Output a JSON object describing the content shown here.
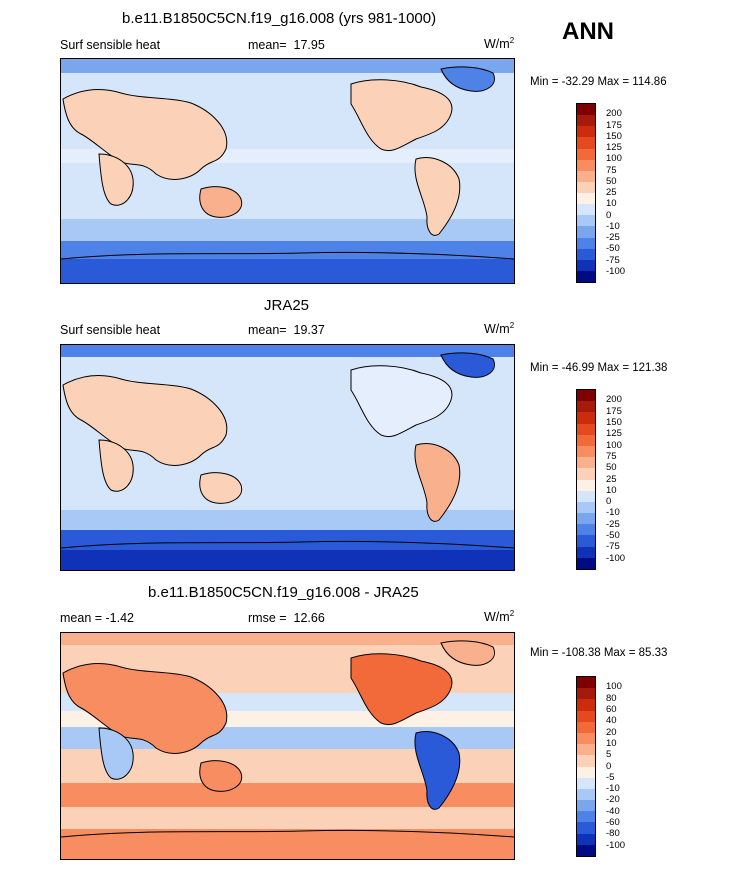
{
  "season": "ANN",
  "panels": [
    {
      "title": "b.e11.B1850C5CN.f19_g16.008 (yrs 981-1000)",
      "left_label": "Surf sensible heat",
      "stat_label": "mean=",
      "stat_value": "17.95",
      "units": "W/m",
      "units_sup": "2",
      "minmax": "Min = -32.29 Max = 114.86"
    },
    {
      "title": "JRA25",
      "left_label": "Surf sensible heat",
      "stat_label": "mean=",
      "stat_value": "19.37",
      "units": "W/m",
      "units_sup": "2",
      "minmax": "Min = -46.99 Max = 121.38"
    },
    {
      "title": "b.e11.B1850C5CN.f19_g16.008 - JRA25",
      "left_label": "mean =  -1.42",
      "stat_label": "rmse =",
      "stat_value": "12.66",
      "units": "W/m",
      "units_sup": "2",
      "minmax": "Min = -108.38 Max = 85.33"
    }
  ],
  "chart_data": [
    {
      "type": "heatmap",
      "title": "b.e11.B1850C5CN.f19_g16.008 (yrs 981-1000)",
      "variable": "Surf sensible heat",
      "mean": 17.95,
      "min": -32.29,
      "max": 114.86,
      "colorbar_levels": [
        "200",
        "175",
        "150",
        "125",
        "100",
        "75",
        "50",
        "25",
        "10",
        "0",
        "-10",
        "-25",
        "-50",
        "-75",
        "-100"
      ],
      "colorbar_colors": [
        "#7f0000",
        "#a51a0a",
        "#cd2a0e",
        "#e54a1e",
        "#f26a3a",
        "#f78d60",
        "#f9b08c",
        "#fbd2b8",
        "#fdf0e4",
        "#d6e6fa",
        "#a8c8f5",
        "#7aa6ee",
        "#4e82e6",
        "#2a5ad8",
        "#1032b8",
        "#000a82"
      ]
    },
    {
      "type": "heatmap",
      "title": "JRA25",
      "variable": "Surf sensible heat",
      "mean": 19.37,
      "min": -46.99,
      "max": 121.38,
      "colorbar_levels": [
        "200",
        "175",
        "150",
        "125",
        "100",
        "75",
        "50",
        "25",
        "10",
        "0",
        "-10",
        "-25",
        "-50",
        "-75",
        "-100"
      ],
      "colorbar_colors": [
        "#7f0000",
        "#a51a0a",
        "#cd2a0e",
        "#e54a1e",
        "#f26a3a",
        "#f78d60",
        "#f9b08c",
        "#fbd2b8",
        "#fdf0e4",
        "#d6e6fa",
        "#a8c8f5",
        "#7aa6ee",
        "#4e82e6",
        "#2a5ad8",
        "#1032b8",
        "#000a82"
      ]
    },
    {
      "type": "heatmap",
      "title": "b.e11.B1850C5CN.f19_g16.008 - JRA25",
      "mean": -1.42,
      "rmse": 12.66,
      "min": -108.38,
      "max": 85.33,
      "colorbar_levels": [
        "100",
        "80",
        "60",
        "40",
        "20",
        "10",
        "5",
        "0",
        "-5",
        "-10",
        "-20",
        "-40",
        "-60",
        "-80",
        "-100"
      ],
      "colorbar_colors": [
        "#7f0000",
        "#a51a0a",
        "#cd2a0e",
        "#e54a1e",
        "#f26a3a",
        "#f78d60",
        "#f9b08c",
        "#fbd2b8",
        "#fdf0e4",
        "#d6e6fa",
        "#a8c8f5",
        "#7aa6ee",
        "#4e82e6",
        "#2a5ad8",
        "#1032b8",
        "#000a82"
      ]
    }
  ]
}
